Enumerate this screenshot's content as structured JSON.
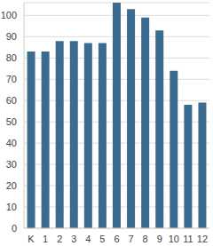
{
  "chart_data": {
    "type": "bar",
    "categories": [
      "K",
      "1",
      "2",
      "3",
      "4",
      "5",
      "6",
      "7",
      "8",
      "9",
      "10",
      "11",
      "12"
    ],
    "values": [
      83,
      83,
      88,
      88,
      87,
      87,
      106,
      103,
      99,
      93,
      74,
      58,
      59
    ],
    "color": "#3b6b8e",
    "ylim": [
      0,
      106
    ],
    "yticks": [
      0,
      10,
      20,
      30,
      40,
      50,
      60,
      70,
      80,
      90,
      100
    ],
    "grid": true
  }
}
